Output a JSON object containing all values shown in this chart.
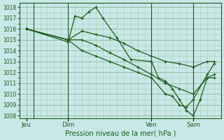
{
  "bg_color": "#c8e8e8",
  "grid_major_color": "#88aa88",
  "grid_minor_color": "#aaccaa",
  "line_color": "#1a5c1a",
  "marker_color": "#1a5c1a",
  "ylabel_ticks": [
    1008,
    1009,
    1010,
    1011,
    1012,
    1013,
    1014,
    1015,
    1016,
    1017,
    1018
  ],
  "ylim": [
    1007.8,
    1018.4
  ],
  "xlabel": "Pression niveau de la mer( hPa )",
  "day_labels": [
    "Jeu",
    "Dim",
    "Ven",
    "Sam"
  ],
  "day_positions": [
    0.5,
    3.5,
    9.5,
    12.5
  ],
  "vline_positions": [
    1.0,
    3.5,
    9.5,
    12.5
  ],
  "xlim": [
    0,
    14.5
  ],
  "series": [
    {
      "x": [
        0.5,
        3.5,
        4.0,
        4.5,
        5.0,
        5.5,
        6.0,
        7.0,
        8.0,
        9.5,
        10.0,
        10.5,
        11.0,
        11.5,
        12.0,
        12.5,
        13.0,
        13.5,
        14.0
      ],
      "y": [
        1016.0,
        1014.8,
        1017.2,
        1017.0,
        1017.6,
        1018.0,
        1017.0,
        1015.2,
        1013.2,
        1013.0,
        1011.5,
        1011.2,
        1010.5,
        1009.5,
        1008.5,
        1008.0,
        1009.5,
        1011.5,
        1011.8
      ]
    },
    {
      "x": [
        0.5,
        3.5,
        4.5,
        5.5,
        6.5,
        7.5,
        8.5,
        9.5,
        10.5,
        11.5,
        12.5,
        13.5,
        14.0
      ],
      "y": [
        1016.0,
        1015.0,
        1015.8,
        1015.5,
        1015.2,
        1014.7,
        1014.0,
        1013.5,
        1013.0,
        1012.8,
        1012.5,
        1013.0,
        1013.0
      ]
    },
    {
      "x": [
        0.5,
        3.5,
        4.5,
        5.5,
        6.5,
        7.5,
        8.5,
        9.5,
        10.5,
        11.5,
        12.5,
        13.5,
        14.0
      ],
      "y": [
        1016.0,
        1015.0,
        1015.0,
        1014.5,
        1013.8,
        1013.2,
        1012.5,
        1011.8,
        1011.0,
        1010.5,
        1010.0,
        1011.5,
        1011.5
      ]
    },
    {
      "x": [
        0.5,
        3.5,
        4.5,
        5.5,
        6.5,
        7.5,
        8.5,
        9.5,
        10.5,
        11.0,
        11.5,
        12.0,
        12.5,
        13.5,
        14.0
      ],
      "y": [
        1016.0,
        1015.0,
        1014.0,
        1013.5,
        1013.0,
        1012.5,
        1012.0,
        1011.5,
        1010.0,
        1009.8,
        1009.0,
        1008.8,
        1009.5,
        1011.8,
        1012.8
      ]
    }
  ]
}
